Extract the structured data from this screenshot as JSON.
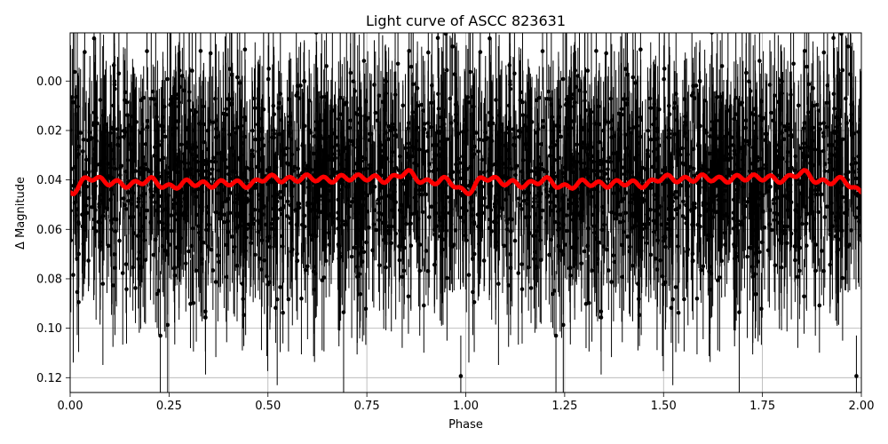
{
  "chart_data": {
    "type": "scatter",
    "title": "Light curve of ASCC 823631",
    "xlabel": "Phase",
    "ylabel": "Δ Magnitude",
    "xlim": [
      0.0,
      2.0
    ],
    "ylim": [
      0.126,
      -0.0195
    ],
    "y_inverted": true,
    "grid": true,
    "x_ticks": [
      "0.00",
      "0.25",
      "0.50",
      "0.75",
      "1.00",
      "1.25",
      "1.50",
      "1.75",
      "2.00"
    ],
    "y_ticks": [
      "0.00",
      "0.02",
      "0.04",
      "0.06",
      "0.08",
      "0.10",
      "0.12"
    ],
    "series": [
      {
        "kind": "data_points_with_errorbars",
        "color": "#000000",
        "approx_point_count": 2600,
        "y_center": 0.04,
        "y_scatter_sigma": 0.02,
        "typical_error": 0.02
      },
      {
        "kind": "smoothed_model",
        "color": "#ff0000",
        "line_width": 5,
        "phase_samples": [
          0.0,
          0.05,
          0.1,
          0.15,
          0.2,
          0.25,
          0.3,
          0.35,
          0.4,
          0.45,
          0.5,
          0.55,
          0.6,
          0.65,
          0.7,
          0.75,
          0.8,
          0.85,
          0.9,
          0.95,
          1.0
        ],
        "magnitude_samples": [
          0.045,
          0.039,
          0.041,
          0.042,
          0.04,
          0.043,
          0.041,
          0.042,
          0.041,
          0.042,
          0.039,
          0.04,
          0.039,
          0.04,
          0.039,
          0.039,
          0.04,
          0.037,
          0.041,
          0.04,
          0.045
        ]
      }
    ]
  }
}
